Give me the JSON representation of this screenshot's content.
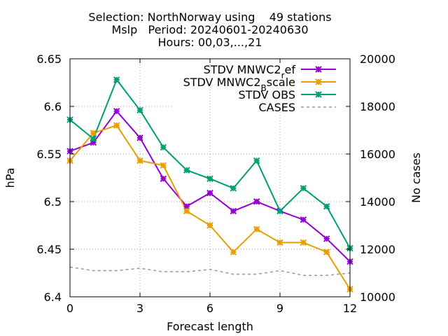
{
  "chart_data": {
    "type": "line",
    "title_lines": [
      "Selection: NorthNorway using    49 stations",
      "Mslp   Period: 20240601-20240630",
      "Hours: 00,03,...,21"
    ],
    "xlabel": "Forecast length",
    "ylabel": "hPa",
    "y2label": "No cases",
    "xlim": [
      0,
      12
    ],
    "ylim": [
      6.4,
      6.65
    ],
    "y2lim": [
      10000,
      20000
    ],
    "xticks": [
      0,
      3,
      6,
      9,
      12
    ],
    "yticks": [
      6.4,
      6.45,
      6.5,
      6.55,
      6.6,
      6.65
    ],
    "y2ticks": [
      10000,
      12000,
      14000,
      16000,
      18000,
      20000
    ],
    "grid": true,
    "legend_position": "top-right",
    "x": [
      0,
      1,
      2,
      3,
      4,
      5,
      6,
      7,
      8,
      9,
      10,
      11,
      12
    ],
    "series": [
      {
        "name": "STDV MNWC2",
        "name_sub": "r",
        "name_after": "ef",
        "axis": "y",
        "color": "#9400d3",
        "marker": true,
        "values": [
          6.553,
          6.562,
          6.595,
          6.567,
          6.524,
          6.495,
          6.509,
          6.49,
          6.5,
          6.49,
          6.481,
          6.461,
          6.437
        ]
      },
      {
        "name": "STDV MNWC2",
        "name_sub": "B",
        "name_after": "scale",
        "axis": "y",
        "color": "#e69f00",
        "marker": true,
        "values": [
          6.543,
          6.572,
          6.58,
          6.543,
          6.538,
          6.49,
          6.475,
          6.447,
          6.471,
          6.457,
          6.457,
          6.447,
          6.408
        ]
      },
      {
        "name": "STDV OBS",
        "axis": "y",
        "color": "#009e73",
        "marker": true,
        "values": [
          6.586,
          6.566,
          6.628,
          6.596,
          6.557,
          6.533,
          6.524,
          6.514,
          6.543,
          6.49,
          6.514,
          6.495,
          6.451
        ]
      },
      {
        "name": "CASES",
        "axis": "y2",
        "color": "#999999",
        "dashed": true,
        "marker": false,
        "values": [
          11250,
          11100,
          11100,
          11200,
          11050,
          11050,
          11150,
          10950,
          10950,
          11100,
          10900,
          10900,
          11000
        ]
      }
    ]
  }
}
